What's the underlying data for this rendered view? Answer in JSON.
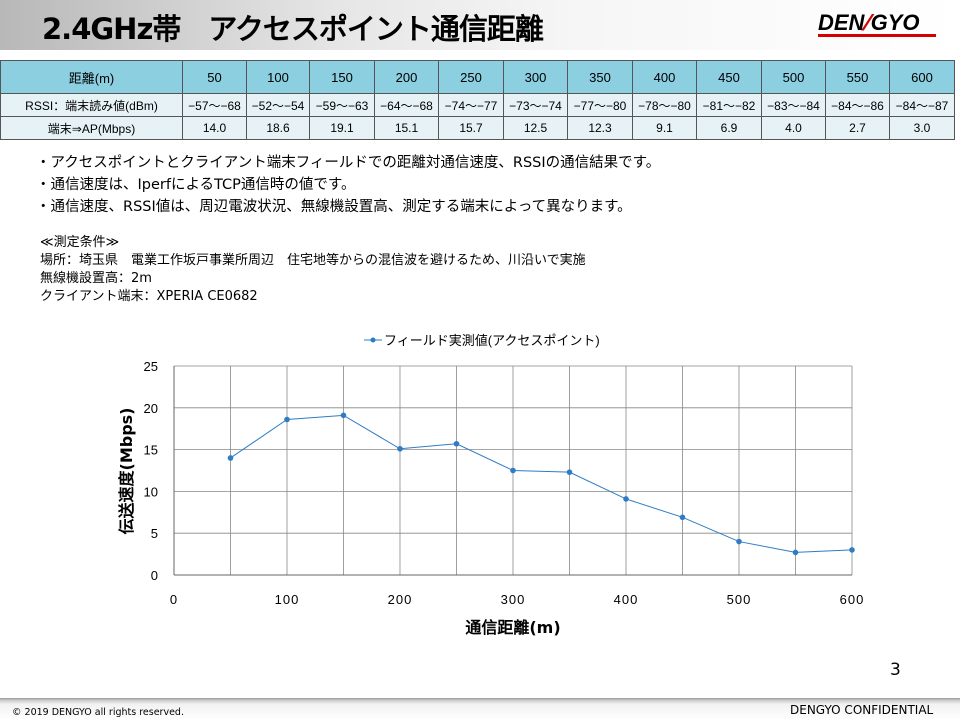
{
  "header": {
    "title": "2.4GHz帯　アクセスポイント通信距離",
    "logo_text": "DENGYO",
    "logo_accent_color": "#d40000"
  },
  "table": {
    "row_headers": [
      "距離(m)",
      "RSSI：端末読み値(dBm)",
      "端末⇒AP(Mbps)"
    ],
    "distances": [
      "50",
      "100",
      "150",
      "200",
      "250",
      "300",
      "350",
      "400",
      "450",
      "500",
      "550",
      "600"
    ],
    "rssi": [
      "−57〜−68",
      "−52〜−54",
      "−59〜−63",
      "−64〜−68",
      "−74〜−77",
      "−73〜−74",
      "−77〜−80",
      "−78〜−80",
      "−81〜−82",
      "−83〜−84",
      "−84〜−86",
      "−84〜−87"
    ],
    "throughput": [
      "14.0",
      "18.6",
      "19.1",
      "15.1",
      "15.7",
      "12.5",
      "12.3",
      "9.1",
      "6.9",
      "4.0",
      "2.7",
      "3.0"
    ],
    "header_color": "#8ccfe0"
  },
  "notes": [
    "・アクセスポイントとクライアント端末フィールドでの距離対通信速度、RSSIの通信結果です。",
    "・通信速度は、IperfによるTCP通信時の値です。",
    "・通信速度、RSSI値は、周辺電波状況、無線機設置高、測定する端末によって異なります。"
  ],
  "conditions": [
    "≪測定条件≫",
    "場所：埼玉県　電業工作坂戸事業所周辺　住宅地等からの混信波を避けるため、川沿いで実施",
    "無線機設置高：2m",
    "クライアント端末：XPERIA CE0682"
  ],
  "chart_data": {
    "type": "scatter",
    "xlabel": "通信距離(m)",
    "ylabel": "伝送速度(Mbps)",
    "xlim": [
      0,
      600
    ],
    "ylim": [
      0,
      25
    ],
    "x_ticks": [
      "0",
      "100",
      "200",
      "300",
      "400",
      "500",
      "600"
    ],
    "y_ticks": [
      "0",
      "5",
      "10",
      "15",
      "20",
      "25"
    ],
    "grid": true,
    "legend_position": "top-center",
    "series": [
      {
        "name": "フィールド実測値(アクセスポイント)",
        "color": "#2e7cc4",
        "x": [
          50,
          100,
          150,
          200,
          250,
          300,
          350,
          400,
          450,
          500,
          550,
          600
        ],
        "y": [
          14.0,
          18.6,
          19.1,
          15.1,
          15.7,
          12.5,
          12.3,
          9.1,
          6.9,
          4.0,
          2.7,
          3.0
        ]
      }
    ]
  },
  "page_number": "3",
  "footer": {
    "copyright": "© 2019 DENGYO  all rights reserved.",
    "confidential": "DENGYO CONFIDENTIAL"
  }
}
